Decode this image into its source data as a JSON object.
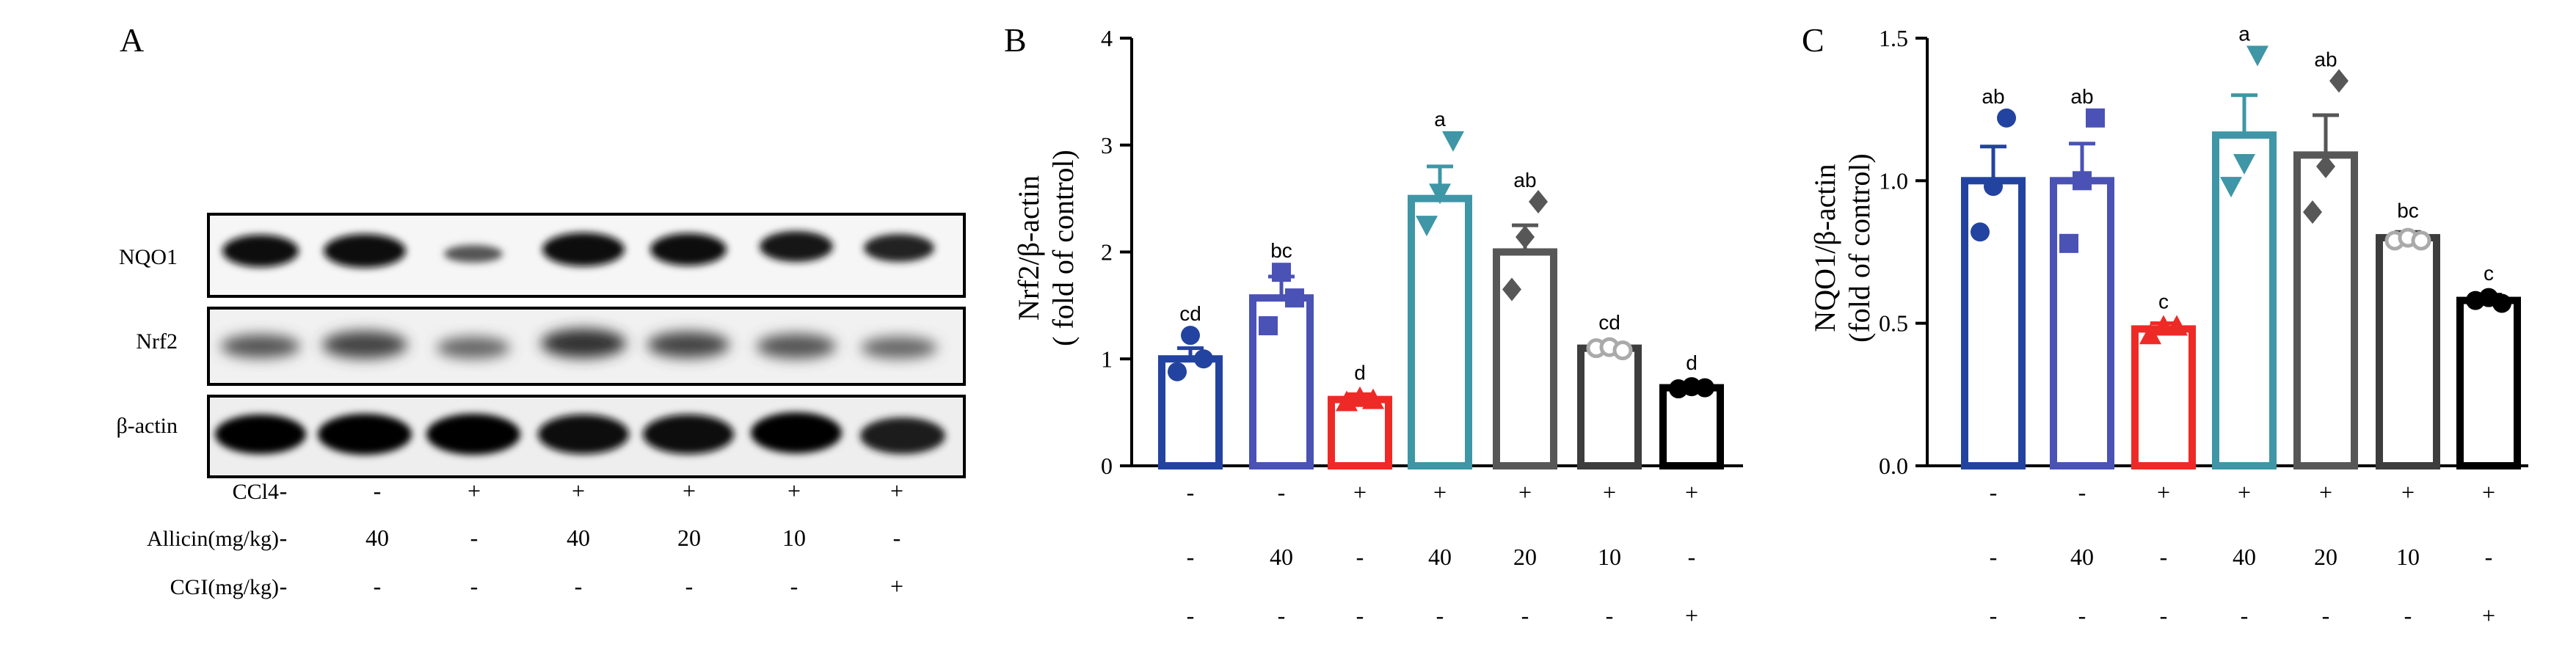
{
  "panels": [
    {
      "id": "A",
      "letter": "A",
      "type": "western_blot",
      "bands": [
        "NQO1",
        "Nrf2",
        "β-actin"
      ],
      "treatment_labels": [
        "CCl4",
        "Allicin(mg/kg)",
        "CGI(mg/kg)"
      ],
      "treatment_table": [
        [
          "-",
          "-",
          "+",
          "+",
          "+",
          "+",
          "+"
        ],
        [
          "-",
          "40",
          "-",
          "40",
          "20",
          "10",
          "-"
        ],
        [
          "-",
          "-",
          "-",
          "-",
          "-",
          "-",
          "+"
        ]
      ]
    }
  ],
  "chart_data": [
    {
      "id": "B",
      "letter": "B",
      "type": "bar",
      "ylabel_line1": "Nrf2/β-actin",
      "ylabel_line2": "( fold of control)",
      "ylim": [
        0,
        4
      ],
      "yticks": [
        "0",
        "1",
        "2",
        "3",
        "4"
      ],
      "values": [
        1.0,
        1.57,
        0.62,
        2.5,
        2.0,
        1.1,
        0.73
      ],
      "errors": [
        0.1,
        0.2,
        0.05,
        0.3,
        0.25,
        0.04,
        0.03
      ],
      "points": [
        [
          0.88,
          1.22,
          1.0
        ],
        [
          1.31,
          1.81,
          1.57
        ],
        [
          0.6,
          0.64,
          0.62
        ],
        [
          2.25,
          2.55,
          3.04
        ],
        [
          1.65,
          2.14,
          2.47
        ],
        [
          1.1,
          1.11,
          1.08
        ],
        [
          0.72,
          0.74,
          0.73
        ]
      ],
      "markers": [
        "circle",
        "square",
        "triangle-up",
        "triangle-down",
        "diamond",
        "circle-open",
        "circle"
      ],
      "colors": [
        "#2343a0",
        "#4a52b5",
        "#ee2a26",
        "#3e96a6",
        "#575757",
        "#3d3d3d",
        "#000000"
      ],
      "point_colors": [
        "#2343a0",
        "#4a52b5",
        "#ee2a26",
        "#3e96a6",
        "#575757",
        "#aaaaaa",
        "#000000"
      ],
      "significance": [
        "cd",
        "bc",
        "d",
        "a",
        "ab",
        "cd",
        "d"
      ],
      "treatment_table": [
        [
          "-",
          "-",
          "+",
          "+",
          "+",
          "+",
          "+"
        ],
        [
          "-",
          "40",
          "-",
          "40",
          "20",
          "10",
          "-"
        ],
        [
          "-",
          "-",
          "-",
          "-",
          "-",
          "-",
          "+"
        ]
      ]
    },
    {
      "id": "C",
      "letter": "C",
      "type": "bar",
      "ylabel_line1": "NQO1/β-actin",
      "ylabel_line2": "(fold of control)",
      "ylim": [
        0,
        1.5
      ],
      "yticks": [
        "0.0",
        "0.5",
        "1.0",
        "1.5"
      ],
      "values": [
        1.0,
        1.0,
        0.48,
        1.16,
        1.09,
        0.8,
        0.58
      ],
      "errors": [
        0.12,
        0.13,
        0.02,
        0.14,
        0.14,
        0.02,
        0.02
      ],
      "points": [
        [
          0.82,
          0.98,
          1.22
        ],
        [
          0.78,
          1.0,
          1.22
        ],
        [
          0.46,
          0.49,
          0.49
        ],
        [
          0.98,
          1.06,
          1.44
        ],
        [
          0.89,
          1.05,
          1.35
        ],
        [
          0.79,
          0.8,
          0.79
        ],
        [
          0.58,
          0.59,
          0.57
        ]
      ],
      "markers": [
        "circle",
        "square",
        "triangle-up",
        "triangle-down",
        "diamond",
        "circle-open",
        "circle"
      ],
      "colors": [
        "#2343a0",
        "#4a52b5",
        "#ee2a26",
        "#3e96a6",
        "#575757",
        "#3d3d3d",
        "#000000"
      ],
      "point_colors": [
        "#2343a0",
        "#4a52b5",
        "#ee2a26",
        "#3e96a6",
        "#575757",
        "#aaaaaa",
        "#000000"
      ],
      "significance": [
        "ab",
        "ab",
        "c",
        "a",
        "ab",
        "bc",
        "c"
      ],
      "treatment_table": [
        [
          "-",
          "-",
          "+",
          "+",
          "+",
          "+",
          "+"
        ],
        [
          "-",
          "40",
          "-",
          "40",
          "20",
          "10",
          "-"
        ],
        [
          "-",
          "-",
          "-",
          "-",
          "-",
          "-",
          "+"
        ]
      ]
    }
  ]
}
